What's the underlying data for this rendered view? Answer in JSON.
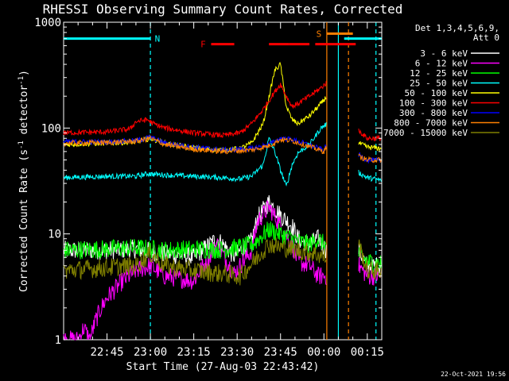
{
  "chart_data": {
    "type": "line",
    "title": "RHESSI Observing Summary Count Rates, Corrected",
    "xlabel": "Start Time (27-Aug-03 22:43:42)",
    "ylabel": "Corrected Count Rate (s⁻¹ detector⁻¹)",
    "ylabel_main": "Corrected Count Rate (s",
    "ylabel_sup1": "-1",
    "ylabel_mid": " detector",
    "ylabel_sup2": "-1",
    "ylabel_end": ")",
    "yscale": "log",
    "ylim": [
      1,
      1000
    ],
    "xlim_minutes": [
      -15,
      95
    ],
    "x_tick_labels": [
      "22:45",
      "23:00",
      "23:15",
      "23:30",
      "23:45",
      "00:00",
      "00:15"
    ],
    "x_tick_minutes": [
      0,
      15,
      30,
      45,
      60,
      75,
      90
    ],
    "y_tick_labels": [
      "1",
      "10",
      "100",
      "1000"
    ],
    "y_tick_values": [
      1,
      10,
      100,
      1000
    ],
    "legend_header": [
      "Det 1,3,4,5,6,9,",
      "Att 0"
    ],
    "legend_position": "top-right, outside plot",
    "flags": [
      {
        "label": "N",
        "color": "#00ffff",
        "segments_minutes": [
          [
            -15,
            15
          ],
          [
            82,
            95
          ]
        ],
        "level": 700
      },
      {
        "label": "F",
        "color": "#ff0000",
        "segments_minutes": [
          [
            36,
            44
          ],
          [
            56,
            63
          ],
          [
            63,
            70
          ],
          [
            72,
            86
          ]
        ],
        "level": 620
      },
      {
        "label": "S",
        "color": "#ff8000",
        "segments_minutes": [
          [
            76,
            85
          ]
        ],
        "level": 780
      }
    ],
    "vertical_markers_minutes": [
      {
        "minutes": 15,
        "color": "#00ffff",
        "style": "dashed"
      },
      {
        "minutes": 76,
        "color": "#ff8000",
        "style": "solid"
      },
      {
        "minutes": 80,
        "color": "#00ffff",
        "style": "solid"
      },
      {
        "minutes": 83.5,
        "color": "#ff8000",
        "style": "dashed"
      },
      {
        "minutes": 93,
        "color": "#00ffff",
        "style": "dashed"
      }
    ],
    "gap_minutes": [
      [
        76,
        87
      ]
    ],
    "series": [
      {
        "name": "3 - 6 keV",
        "color": "#ffffff",
        "x_minutes": [
          -15,
          0,
          10,
          20,
          30,
          38,
          44,
          50,
          52,
          56,
          60,
          64,
          66,
          70,
          73,
          76,
          87,
          90,
          95
        ],
        "y": [
          7,
          7,
          7.2,
          6.5,
          6,
          9,
          6.2,
          8.5,
          14,
          20,
          15,
          12,
          9,
          8,
          9,
          7,
          7,
          5,
          5
        ]
      },
      {
        "name": "6 - 12 keV",
        "color": "#ff00ff",
        "x_minutes": [
          -15,
          -10,
          -8,
          -6,
          -4,
          -2,
          0,
          5,
          10,
          15,
          20,
          25,
          30,
          38,
          44,
          50,
          52,
          56,
          60,
          64,
          66,
          70,
          73,
          76,
          87,
          90,
          95
        ],
        "y": [
          1,
          1,
          1.3,
          1,
          1.5,
          2,
          2.5,
          3.5,
          4.5,
          5,
          4,
          3.8,
          3.6,
          8,
          4.2,
          7,
          13,
          18,
          12,
          8,
          5.5,
          5,
          4,
          4,
          5,
          4,
          4
        ]
      },
      {
        "name": "12 - 25 keV",
        "color": "#00ff00",
        "x_minutes": [
          -15,
          0,
          10,
          20,
          30,
          40,
          50,
          56,
          60,
          64,
          66,
          70,
          73,
          76,
          87,
          90,
          95
        ],
        "y": [
          7,
          7.2,
          7.4,
          7,
          7.2,
          7.1,
          7.8,
          11,
          10,
          9,
          8.5,
          8,
          9,
          7.5,
          6.5,
          5.5,
          5.2
        ]
      },
      {
        "name": "25 - 50 keV",
        "color": "#00ffff",
        "x_minutes": [
          -15,
          0,
          10,
          14,
          20,
          30,
          40,
          46,
          50,
          54,
          56,
          58,
          60,
          62,
          64,
          66,
          70,
          74,
          76,
          87,
          90,
          95
        ],
        "y": [
          34,
          35,
          35,
          37,
          36,
          35,
          34,
          33,
          35,
          45,
          80,
          60,
          40,
          28,
          45,
          58,
          70,
          100,
          110,
          38,
          34,
          32
        ]
      },
      {
        "name": "50 - 100 keV",
        "color": "#ffff00",
        "x_minutes": [
          -15,
          0,
          10,
          15,
          20,
          30,
          40,
          46,
          50,
          54,
          58,
          60,
          62,
          64,
          66,
          70,
          74,
          76,
          87,
          90,
          95
        ],
        "y": [
          70,
          72,
          74,
          80,
          72,
          65,
          62,
          64,
          72,
          110,
          350,
          400,
          160,
          120,
          110,
          130,
          170,
          200,
          72,
          66,
          64
        ]
      },
      {
        "name": "100 - 300 keV",
        "color": "#ff0000",
        "x_minutes": [
          -15,
          0,
          8,
          10,
          14,
          16,
          20,
          30,
          40,
          46,
          50,
          54,
          58,
          60,
          62,
          64,
          66,
          70,
          74,
          76,
          87,
          90,
          95
        ],
        "y": [
          90,
          92,
          98,
          115,
          120,
          110,
          100,
          90,
          85,
          90,
          110,
          150,
          220,
          260,
          200,
          160,
          170,
          200,
          240,
          270,
          95,
          80,
          80
        ]
      },
      {
        "name": "300 - 800 keV",
        "color": "#0000ff",
        "x_minutes": [
          -15,
          0,
          10,
          15,
          20,
          30,
          40,
          50,
          56,
          60,
          64,
          68,
          72,
          75,
          76,
          87,
          90,
          95
        ],
        "y": [
          74,
          74,
          76,
          82,
          72,
          66,
          62,
          64,
          70,
          80,
          78,
          72,
          66,
          62,
          70,
          56,
          50,
          49
        ]
      },
      {
        "name": "800 - 7000 keV",
        "color": "#ff8000",
        "x_minutes": [
          -15,
          0,
          10,
          15,
          20,
          30,
          40,
          50,
          56,
          60,
          64,
          68,
          72,
          75,
          76,
          87,
          90,
          95
        ],
        "y": [
          72,
          73,
          75,
          80,
          70,
          63,
          60,
          62,
          68,
          78,
          76,
          70,
          64,
          60,
          68,
          54,
          50,
          50
        ]
      },
      {
        "name": "7000 - 15000 keV",
        "color": "#808000",
        "x_minutes": [
          -15,
          0,
          10,
          15,
          20,
          30,
          40,
          46,
          50,
          54,
          56,
          60,
          64,
          68,
          72,
          76,
          87,
          90,
          95
        ],
        "y": [
          4.5,
          4.8,
          5,
          6.5,
          5,
          4.5,
          4.2,
          4,
          5.2,
          7,
          8,
          7.5,
          7.2,
          6.8,
          6.5,
          6,
          8,
          4.5,
          4.5
        ]
      }
    ]
  },
  "timestamp": "22-Oct-2021 19:56"
}
